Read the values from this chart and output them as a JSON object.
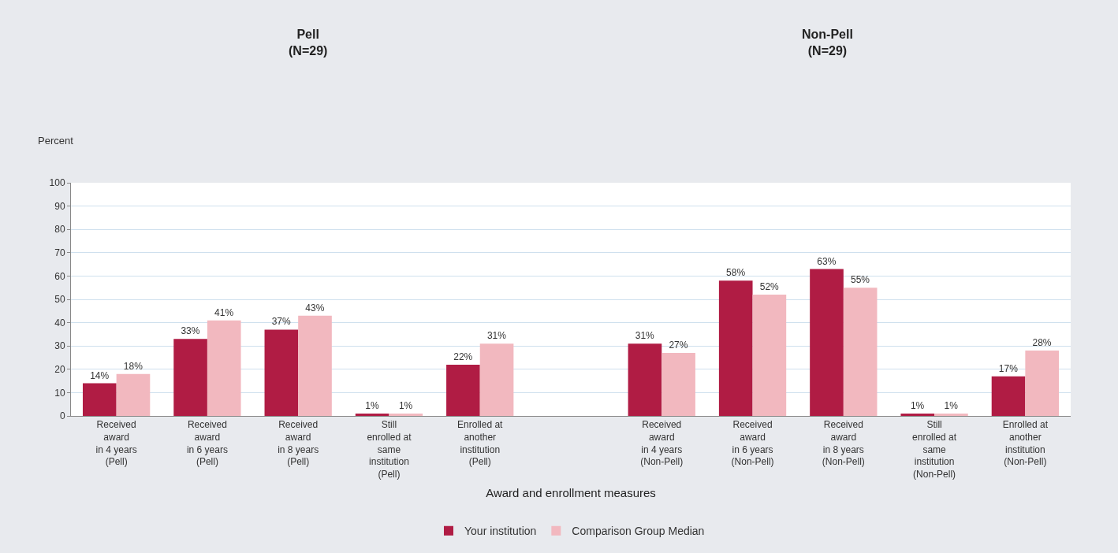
{
  "chart_data": {
    "type": "bar",
    "xlabel": "Award and enrollment measures",
    "ylabel": "Percent",
    "annotations": [
      "Pell\n(N=29)",
      "Non-Pell\n(N=29)"
    ],
    "categories": [
      "Received\naward\nin 4 years\n(Pell)",
      "Received\naward\nin 6 years\n(Pell)",
      "Received\naward\nin 8 years\n(Pell)",
      "Still\nenrolled at\nsame\ninstitution\n(Pell)",
      "Enrolled at\nanother\ninstitution\n(Pell)",
      null,
      "Received\naward\nin 4 years\n(Non-Pell)",
      "Received\naward\nin 6 years\n(Non-Pell)",
      "Received\naward\nin 8 years\n(Non-Pell)",
      "Still\nenrolled at\nsame\ninstitution\n(Non-Pell)",
      "Enrolled at\nanother\ninstitution\n(Non-Pell)"
    ],
    "series": [
      {
        "name": "Your institution",
        "color": "#b01c44",
        "values": [
          14,
          33,
          37,
          1,
          22,
          null,
          31,
          58,
          63,
          1,
          17
        ],
        "value_labels": [
          "14%",
          "33%",
          "37%",
          "1%",
          "22%",
          null,
          "31%",
          "58%",
          "63%",
          "1%",
          "17%"
        ]
      },
      {
        "name": "Comparison Group Median",
        "color": "#f2b8bf",
        "values": [
          18,
          41,
          43,
          1,
          31,
          null,
          27,
          52,
          55,
          1,
          28
        ],
        "value_labels": [
          "18%",
          "41%",
          "43%",
          "1%",
          "31%",
          null,
          "27%",
          "52%",
          "55%",
          "1%",
          "28%"
        ]
      }
    ],
    "ylim": [
      0,
      100
    ],
    "yticks": [
      0,
      10,
      20,
      30,
      40,
      50,
      60,
      70,
      80,
      90,
      100
    ],
    "grid": "y",
    "legend": "bottom"
  }
}
